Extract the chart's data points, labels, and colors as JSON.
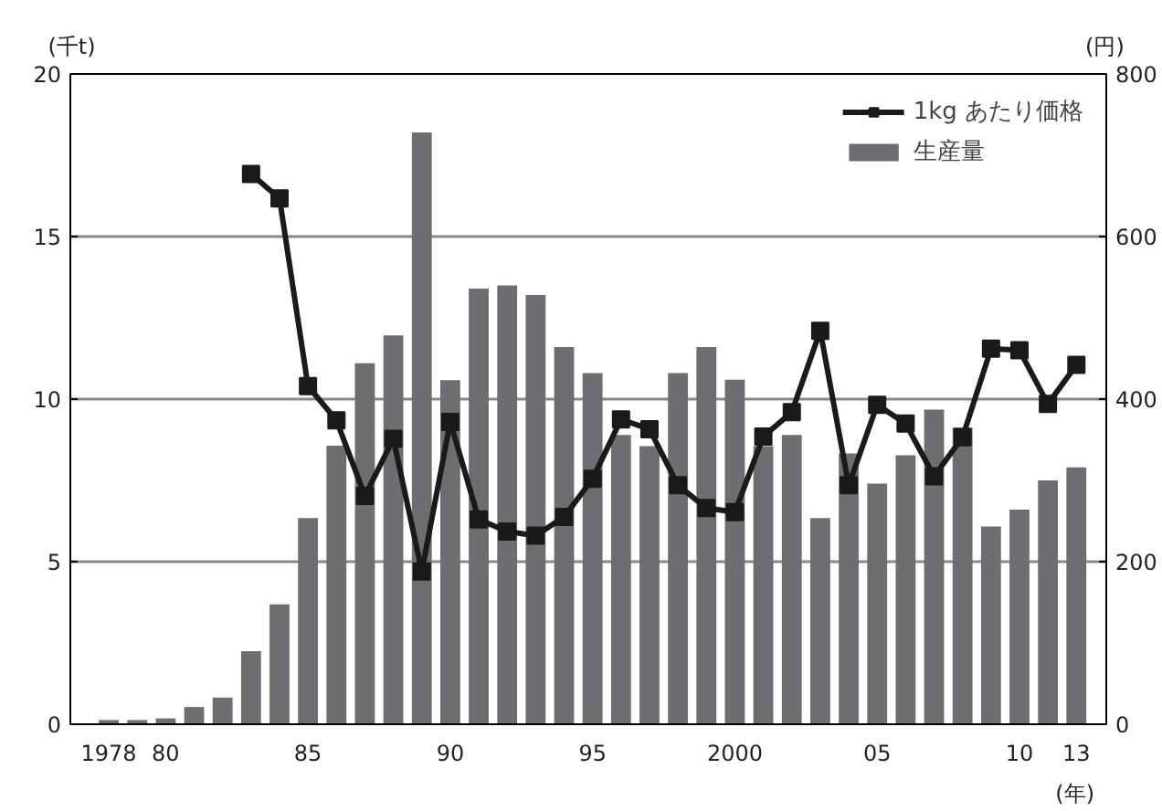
{
  "chart_data": {
    "type": "bar",
    "ylabel": "(千t)",
    "y2label": "(円)",
    "xlabel": "(年)",
    "categories": [
      "1978",
      null,
      "80",
      null,
      null,
      null,
      null,
      "85",
      null,
      null,
      null,
      null,
      "90",
      null,
      null,
      null,
      null,
      "95",
      null,
      null,
      null,
      null,
      "2000",
      null,
      null,
      null,
      null,
      "05",
      null,
      null,
      null,
      null,
      "10",
      null,
      "13"
    ],
    "series": [
      {
        "name": "1kg あたり価格",
        "type": "line",
        "axis": "y2",
        "color": "#1a1a1a",
        "marker": "square",
        "values": [
          null,
          null,
          null,
          null,
          null,
          677,
          647,
          416,
          374,
          281,
          351,
          188,
          372,
          252,
          237,
          232,
          255,
          302,
          375,
          363,
          294,
          266,
          261,
          354,
          384,
          484,
          294,
          393,
          370,
          305,
          353,
          462,
          460,
          394,
          442
        ]
      },
      {
        "name": "生産量",
        "color": "#6d6e71",
        "values": [
          0.13,
          0.13,
          0.18,
          0.53,
          0.82,
          2.25,
          3.69,
          6.34,
          8.57,
          11.1,
          11.96,
          18.2,
          10.58,
          13.4,
          13.5,
          13.2,
          11.6,
          10.8,
          8.9,
          8.55,
          10.8,
          11.6,
          10.6,
          8.55,
          8.9,
          6.34,
          8.33,
          7.4,
          8.27,
          9.68,
          9.13,
          6.08,
          6.6,
          7.5,
          7.9
        ]
      }
    ],
    "ylim": [
      0,
      20
    ],
    "yticks": [
      0,
      5,
      10,
      15,
      20
    ],
    "y2lim": [
      0,
      800
    ],
    "y2ticks": [
      0,
      200,
      400,
      600,
      800
    ],
    "grid": "y",
    "legend": "top right"
  }
}
